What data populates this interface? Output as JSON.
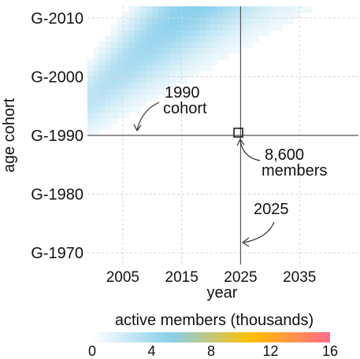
{
  "chart_data": {
    "type": "heatmap",
    "title": "",
    "xlabel": "year",
    "ylabel": "age cohort",
    "x_ticks": [
      2005,
      2015,
      2025,
      2035
    ],
    "x_range": [
      1999,
      2045
    ],
    "y_tick_labels": [
      "G-1970",
      "G-1980",
      "G-1990",
      "G-2000",
      "G-2010"
    ],
    "y_tick_values": [
      1970,
      1980,
      1990,
      2000,
      2010
    ],
    "y_range": [
      1968,
      2012
    ],
    "colorbar": {
      "label": "active members (thousands)",
      "ticks": [
        0,
        4,
        8,
        12,
        16
      ],
      "range": [
        0,
        16
      ]
    },
    "colorscale": [
      "#ffffff",
      "#87ceeb",
      "#ffc000",
      "#ff6b8a"
    ],
    "model": {
      "ridge_intercept_year": 1997,
      "ridge_slope": 0.95,
      "base_thousands": 3,
      "growth_per_year": 0.14
    },
    "crosshair": {
      "x": 2025,
      "y": 1990
    },
    "annotations": [
      {
        "lines": [
          "1990",
          "cohort"
        ]
      },
      {
        "lines": [
          "8,600",
          "members"
        ]
      },
      {
        "lines": [
          "2025"
        ]
      }
    ],
    "highlight_value_thousands": 8.6
  }
}
